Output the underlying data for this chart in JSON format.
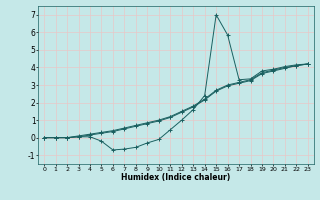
{
  "xlabel": "Humidex (Indice chaleur)",
  "bg_color": "#c5e8e8",
  "grid_color": "#e8c8c8",
  "line_color": "#1a6060",
  "xlim": [
    -0.5,
    23.5
  ],
  "ylim": [
    -1.5,
    7.5
  ],
  "xticks": [
    0,
    1,
    2,
    3,
    4,
    5,
    6,
    7,
    8,
    9,
    10,
    11,
    12,
    13,
    14,
    15,
    16,
    17,
    18,
    19,
    20,
    21,
    22,
    23
  ],
  "yticks": [
    -1,
    0,
    1,
    2,
    3,
    4,
    5,
    6,
    7
  ],
  "series": [
    {
      "x": [
        0,
        1,
        2,
        3,
        4,
        5,
        6,
        7,
        8,
        9,
        10,
        11,
        12,
        13,
        14,
        15,
        16,
        17,
        18,
        19,
        20,
        21,
        22,
        23
      ],
      "y": [
        0,
        0,
        0,
        0.1,
        0.2,
        0.3,
        0.4,
        0.55,
        0.7,
        0.85,
        1.0,
        1.2,
        1.5,
        1.8,
        2.2,
        2.7,
        3.0,
        3.15,
        3.3,
        3.7,
        3.85,
        4.0,
        4.1,
        4.2
      ]
    },
    {
      "x": [
        0,
        1,
        2,
        3,
        4,
        5,
        6,
        7,
        8,
        9,
        10,
        11,
        12,
        13,
        14,
        15,
        16,
        17,
        18,
        19,
        20,
        21,
        22,
        23
      ],
      "y": [
        0,
        0,
        0,
        0.05,
        0.15,
        0.25,
        0.35,
        0.5,
        0.65,
        0.8,
        0.95,
        1.15,
        1.45,
        1.75,
        2.15,
        2.65,
        2.95,
        3.1,
        3.25,
        3.65,
        3.8,
        3.95,
        4.1,
        4.2
      ]
    },
    {
      "x": [
        0,
        1,
        2,
        3,
        4,
        5,
        6,
        7,
        8,
        9,
        10,
        11,
        12,
        13,
        14,
        15,
        16,
        17,
        18,
        19,
        20,
        21,
        22,
        23
      ],
      "y": [
        0,
        0,
        0,
        0.05,
        0.05,
        -0.2,
        -0.7,
        -0.65,
        -0.55,
        -0.3,
        -0.1,
        0.45,
        1.0,
        1.6,
        2.4,
        7.0,
        5.85,
        3.3,
        3.35,
        3.8,
        3.9,
        4.05,
        4.15,
        4.2
      ]
    }
  ]
}
